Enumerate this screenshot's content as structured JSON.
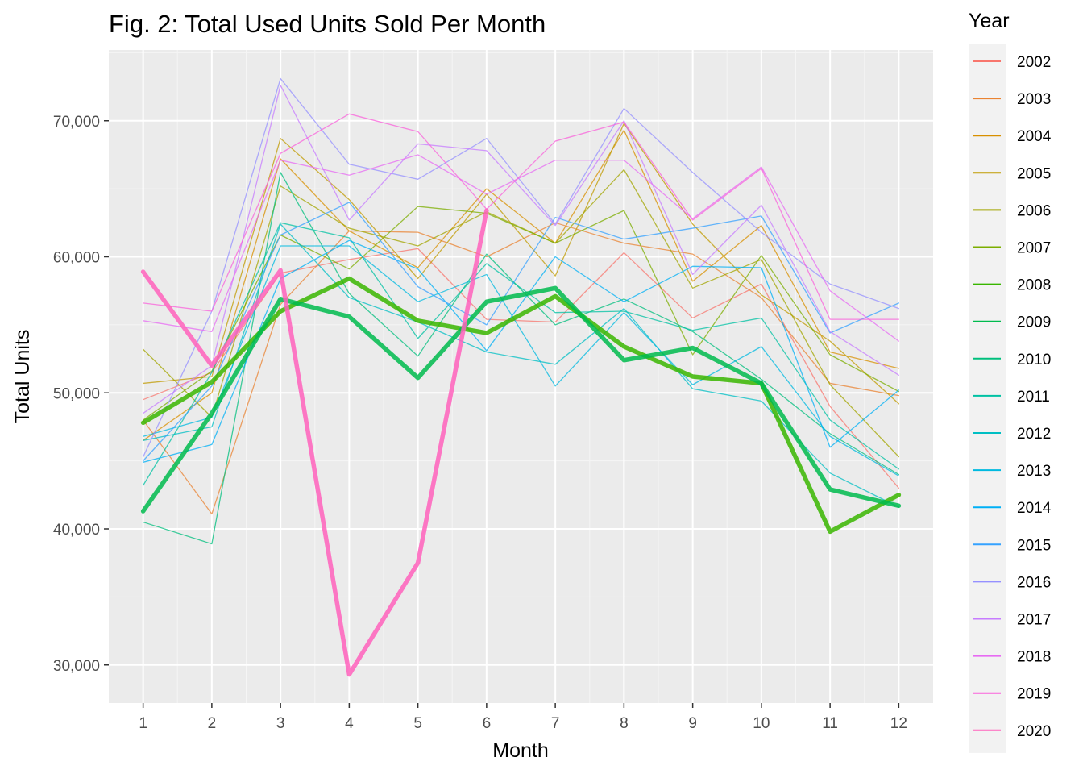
{
  "chart_data": {
    "type": "line",
    "title": "Fig. 2: Total Used Units Sold Per Month",
    "xlabel": "Month",
    "ylabel": "Total Units",
    "x": [
      1,
      2,
      3,
      4,
      5,
      6,
      7,
      8,
      9,
      10,
      11,
      12
    ],
    "x_tick_labels": [
      "1",
      "2",
      "3",
      "4",
      "5",
      "6",
      "7",
      "8",
      "9",
      "10",
      "11",
      "12"
    ],
    "xlim": [
      0.5,
      12.5
    ],
    "ylim": [
      27200,
      75200
    ],
    "y_ticks": [
      30000,
      40000,
      50000,
      60000,
      70000
    ],
    "y_tick_labels": [
      "30,000",
      "40,000",
      "50,000",
      "60,000",
      "70,000"
    ],
    "grid": true,
    "legend": {
      "title": "Year",
      "position": "right"
    },
    "series": [
      {
        "name": "2002",
        "color": "#F8766D",
        "emphasis": false,
        "values": [
          49500,
          51500,
          58800,
          59800,
          60600,
          55400,
          55200,
          60300,
          55500,
          58000,
          49000,
          43000
        ]
      },
      {
        "name": "2003",
        "color": "#EA8331",
        "emphasis": false,
        "values": [
          48000,
          41100,
          56500,
          61900,
          61800,
          60000,
          62500,
          61000,
          60200,
          57000,
          50700,
          49800
        ]
      },
      {
        "name": "2004",
        "color": "#D89000",
        "emphasis": false,
        "values": [
          46500,
          50000,
          67200,
          61900,
          59200,
          65000,
          61000,
          69300,
          58200,
          62300,
          53000,
          51800
        ]
      },
      {
        "name": "2005",
        "color": "#C09B00",
        "emphasis": false,
        "values": [
          50700,
          51200,
          68700,
          64200,
          58400,
          64600,
          58600,
          69800,
          62400,
          57200,
          53800,
          49200
        ]
      },
      {
        "name": "2006",
        "color": "#A3A500",
        "emphasis": false,
        "values": [
          53200,
          48200,
          65200,
          62100,
          60800,
          63300,
          61000,
          66400,
          57700,
          59800,
          50600,
          45300
        ]
      },
      {
        "name": "2007",
        "color": "#7CAE00",
        "emphasis": false,
        "values": [
          48000,
          51600,
          61600,
          59100,
          63700,
          63200,
          61000,
          63400,
          52800,
          60100,
          52800,
          50100
        ]
      },
      {
        "name": "2008",
        "color": "#39B600",
        "emphasis": true,
        "values": [
          47800,
          50800,
          56000,
          58400,
          55300,
          54400,
          57100,
          53400,
          51200,
          50700,
          39800,
          42500
        ]
      },
      {
        "name": "2009",
        "color": "#00BB4E",
        "emphasis": true,
        "values": [
          41300,
          48500,
          56900,
          55600,
          51100,
          56700,
          57700,
          52400,
          53300,
          50700,
          42900,
          41700
        ]
      },
      {
        "name": "2010",
        "color": "#00BF7D",
        "emphasis": false,
        "values": [
          40500,
          38900,
          66200,
          57300,
          52700,
          60200,
          55000,
          56900,
          54500,
          51000,
          47000,
          44000
        ]
      },
      {
        "name": "2011",
        "color": "#00C1A3",
        "emphasis": false,
        "values": [
          43200,
          51500,
          62500,
          61400,
          54000,
          59500,
          55900,
          56000,
          54600,
          55500,
          48000,
          44400
        ]
      },
      {
        "name": "2012",
        "color": "#00BFC4",
        "emphasis": false,
        "values": [
          46500,
          47500,
          62400,
          57000,
          55200,
          53000,
          52100,
          56200,
          50300,
          49400,
          44100,
          41600
        ]
      },
      {
        "name": "2013",
        "color": "#00BAE0",
        "emphasis": false,
        "values": [
          46800,
          48200,
          60800,
          60800,
          56700,
          58700,
          50500,
          55900,
          50600,
          53400,
          46800,
          43900
        ]
      },
      {
        "name": "2014",
        "color": "#00B0F6",
        "emphasis": false,
        "values": [
          44900,
          46200,
          58400,
          61200,
          59100,
          53100,
          60000,
          56700,
          59300,
          59200,
          46000,
          50200
        ]
      },
      {
        "name": "2015",
        "color": "#35A2FF",
        "emphasis": false,
        "values": [
          45000,
          50500,
          61600,
          64000,
          57800,
          55000,
          62900,
          61300,
          62100,
          63000,
          54400,
          56600
        ]
      },
      {
        "name": "2016",
        "color": "#9590FF",
        "emphasis": false,
        "values": [
          45300,
          56000,
          73100,
          66800,
          65700,
          68700,
          62400,
          70900,
          66200,
          61800,
          58000,
          56200
        ]
      },
      {
        "name": "2017",
        "color": "#C77CFF",
        "emphasis": false,
        "values": [
          48500,
          52000,
          72600,
          62700,
          68300,
          67800,
          62300,
          70000,
          58700,
          63800,
          54500,
          51300
        ]
      },
      {
        "name": "2018",
        "color": "#E76BF3",
        "emphasis": false,
        "values": [
          55300,
          54500,
          67100,
          66000,
          67500,
          64600,
          67100,
          67100,
          62800,
          66600,
          57500,
          53800
        ]
      },
      {
        "name": "2019",
        "color": "#FA62DB",
        "emphasis": false,
        "values": [
          56600,
          56000,
          67600,
          70500,
          69200,
          63500,
          68500,
          69900,
          62700,
          66500,
          55400,
          55400
        ]
      },
      {
        "name": "2020",
        "color": "#FF62BC",
        "emphasis": true,
        "values": [
          58900,
          52000,
          59000,
          29300,
          37500,
          63400,
          null,
          null,
          null,
          null,
          null,
          null
        ]
      }
    ]
  }
}
